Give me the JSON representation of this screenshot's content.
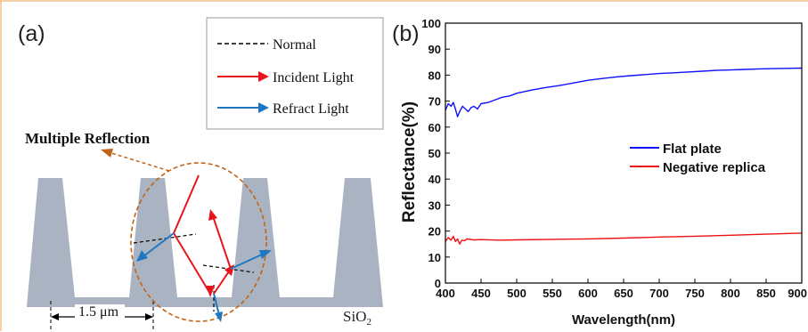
{
  "panel_a": {
    "label": "(a)",
    "legend": [
      {
        "text": "Normal",
        "color": "#000000",
        "style": "dashed"
      },
      {
        "text": "Incident Light",
        "color": "#e8141c",
        "style": "arrow"
      },
      {
        "text": "Refract Light",
        "color": "#1f77c4",
        "style": "arrow"
      }
    ],
    "annotation": "Multiple Reflection",
    "dimension_value": "1.5 μm",
    "substrate_base": "SiO",
    "substrate_sub": "2",
    "colors": {
      "structure": "#a9b3c2",
      "frame": "#f0a050",
      "annotation": "#c06418"
    }
  },
  "chart_data": {
    "label": "(b)",
    "type": "line",
    "xlabel": "Wavelength(nm)",
    "ylabel": "Reflectance(%)",
    "xlim": [
      400,
      900
    ],
    "ylim": [
      0,
      100
    ],
    "xticks": [
      400,
      450,
      500,
      550,
      600,
      650,
      700,
      750,
      800,
      850,
      900
    ],
    "yticks": [
      0,
      10,
      20,
      30,
      40,
      50,
      60,
      70,
      80,
      90,
      100
    ],
    "legend_position": "middle-right",
    "grid": false,
    "series": [
      {
        "name": "Flat plate",
        "color": "#1010ff",
        "points": [
          [
            400,
            66.5
          ],
          [
            404,
            69
          ],
          [
            408,
            68
          ],
          [
            411,
            69.5
          ],
          [
            414,
            67
          ],
          [
            417,
            64
          ],
          [
            420,
            66
          ],
          [
            424,
            68
          ],
          [
            428,
            67
          ],
          [
            432,
            66
          ],
          [
            436,
            67.5
          ],
          [
            440,
            68
          ],
          [
            445,
            67
          ],
          [
            450,
            69
          ],
          [
            460,
            69.5
          ],
          [
            470,
            70.5
          ],
          [
            480,
            71.5
          ],
          [
            490,
            72
          ],
          [
            500,
            73
          ],
          [
            520,
            74.2
          ],
          [
            540,
            75.2
          ],
          [
            560,
            76
          ],
          [
            580,
            77
          ],
          [
            600,
            78
          ],
          [
            620,
            78.7
          ],
          [
            640,
            79.3
          ],
          [
            660,
            79.8
          ],
          [
            680,
            80.2
          ],
          [
            700,
            80.6
          ],
          [
            720,
            80.9
          ],
          [
            740,
            81.2
          ],
          [
            760,
            81.5
          ],
          [
            780,
            81.8
          ],
          [
            800,
            82
          ],
          [
            820,
            82.2
          ],
          [
            840,
            82.4
          ],
          [
            860,
            82.5
          ],
          [
            880,
            82.6
          ],
          [
            900,
            82.7
          ]
        ]
      },
      {
        "name": "Negative replica",
        "color": "#ee1111",
        "points": [
          [
            400,
            16
          ],
          [
            404,
            17.5
          ],
          [
            408,
            16.5
          ],
          [
            411,
            18
          ],
          [
            414,
            16
          ],
          [
            417,
            17
          ],
          [
            420,
            15
          ],
          [
            423,
            16.5
          ],
          [
            427,
            16.3
          ],
          [
            430,
            17
          ],
          [
            440,
            16.6
          ],
          [
            450,
            16.7
          ],
          [
            475,
            16.5
          ],
          [
            500,
            16.6
          ],
          [
            550,
            16.8
          ],
          [
            600,
            17
          ],
          [
            650,
            17.3
          ],
          [
            700,
            17.7
          ],
          [
            750,
            18
          ],
          [
            800,
            18.4
          ],
          [
            850,
            18.8
          ],
          [
            900,
            19.2
          ]
        ]
      }
    ]
  }
}
